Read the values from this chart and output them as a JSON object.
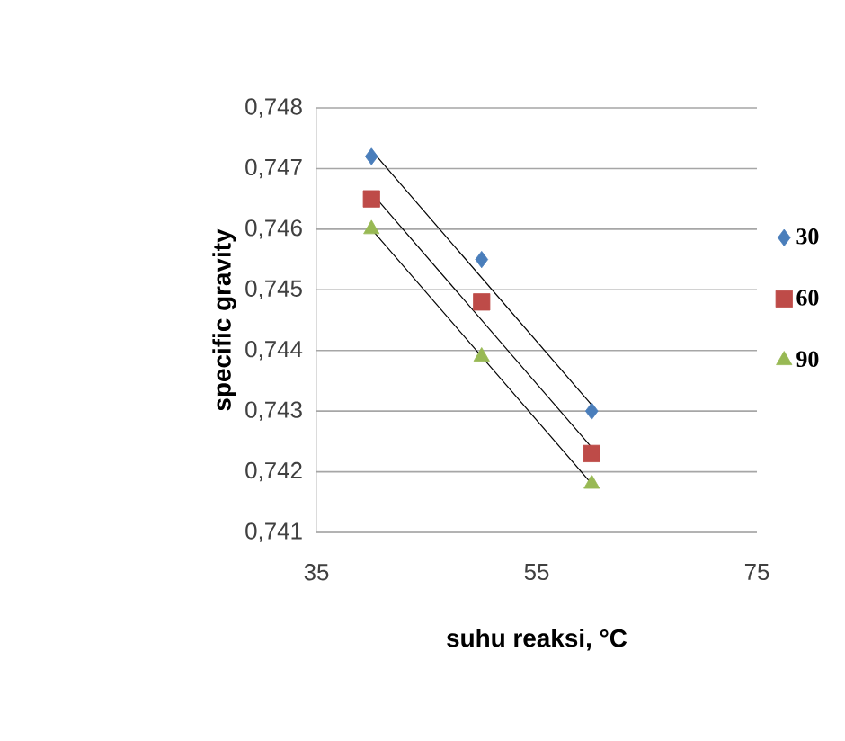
{
  "chart_data": {
    "type": "scatter",
    "xlabel": "suhu reaksi, °C",
    "ylabel": "specific gravity",
    "xlim": [
      35,
      75
    ],
    "xticks": [
      35,
      55,
      75
    ],
    "ylim": [
      0.741,
      0.748
    ],
    "yticks": [
      {
        "value": 0.741,
        "label": "0,741"
      },
      {
        "value": 0.742,
        "label": "0,742"
      },
      {
        "value": 0.743,
        "label": "0,743"
      },
      {
        "value": 0.744,
        "label": "0,744"
      },
      {
        "value": 0.745,
        "label": "0,745"
      },
      {
        "value": 0.746,
        "label": "0,746"
      },
      {
        "value": 0.747,
        "label": "0,747"
      },
      {
        "value": 0.748,
        "label": "0,748"
      }
    ],
    "grid": "y",
    "legend": "right",
    "series": [
      {
        "name": "30",
        "color": "#4a7ebb",
        "marker": "diamond",
        "x": [
          40,
          50,
          60
        ],
        "values": [
          0.7472,
          0.7455,
          0.743
        ]
      },
      {
        "name": "60",
        "color": "#be4b48",
        "marker": "square",
        "x": [
          40,
          50,
          60
        ],
        "values": [
          0.7465,
          0.7448,
          0.7423
        ]
      },
      {
        "name": "90",
        "color": "#98b954",
        "marker": "triangle",
        "x": [
          40,
          50,
          60
        ],
        "values": [
          0.746,
          0.7439,
          0.7418
        ]
      },
      {
        "type": "line",
        "color": "#000000",
        "marker": "none",
        "line_style": "solid",
        "x": [
          40,
          60
        ],
        "values": [
          0.7473,
          0.7431
        ]
      },
      {
        "type": "line",
        "color": "#000000",
        "marker": "none",
        "line_style": "solid",
        "x": [
          40,
          60
        ],
        "values": [
          0.7466,
          0.7424
        ]
      },
      {
        "type": "line",
        "color": "#000000",
        "marker": "none",
        "line_style": "solid",
        "x": [
          40,
          60
        ],
        "values": [
          0.746,
          0.7418
        ]
      }
    ]
  }
}
